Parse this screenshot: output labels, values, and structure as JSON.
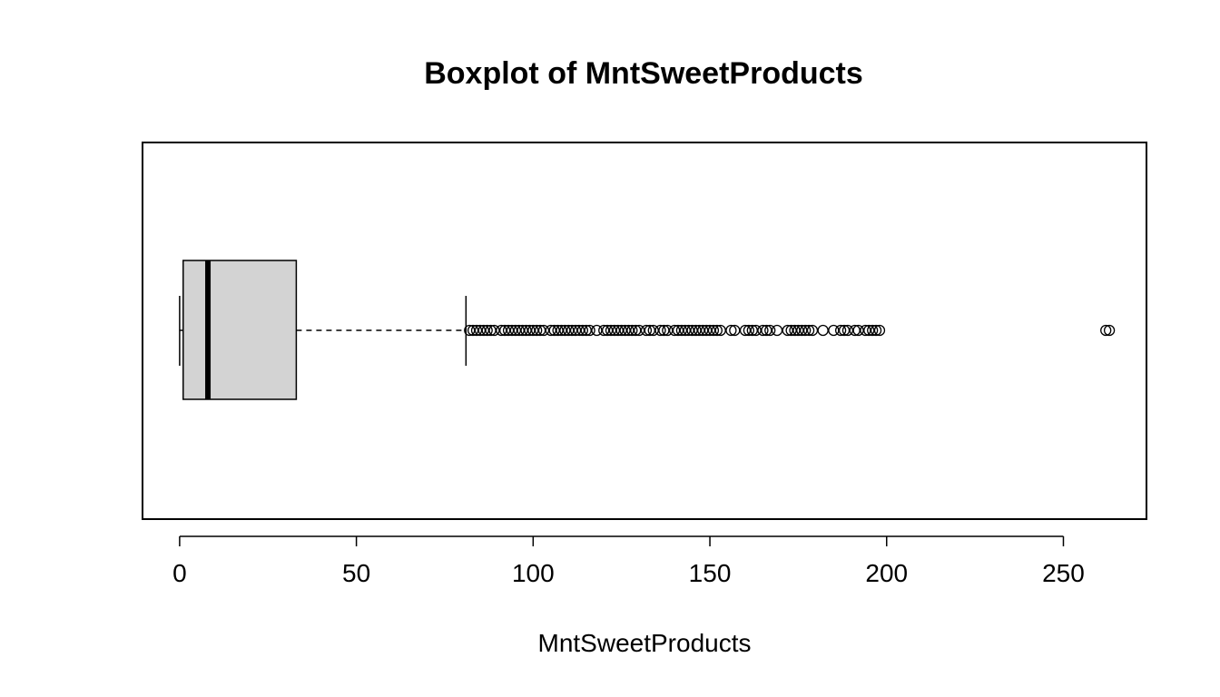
{
  "chart_data": {
    "type": "boxplot",
    "orientation": "horizontal",
    "title": "Boxplot of MntSweetProducts",
    "xlabel": "MntSweetProducts",
    "ylabel": "",
    "xlim": [
      -10.5,
      273.5
    ],
    "xticks": [
      0,
      50,
      100,
      150,
      200,
      250
    ],
    "xtick_labels": [
      "0",
      "50",
      "100",
      "150",
      "200",
      "250"
    ],
    "grid": false,
    "box": {
      "min": 0,
      "q1": 1,
      "median": 8,
      "q3": 33,
      "whisker_high": 81
    },
    "outliers": [
      82,
      83,
      84,
      85,
      86,
      87,
      88,
      89,
      91,
      92,
      93,
      94,
      95,
      96,
      97,
      98,
      99,
      100,
      101,
      102,
      103,
      105,
      106,
      107,
      108,
      109,
      110,
      111,
      112,
      113,
      114,
      115,
      116,
      118,
      120,
      121,
      122,
      123,
      124,
      125,
      126,
      127,
      128,
      129,
      130,
      132,
      133,
      134,
      136,
      137,
      138,
      140,
      141,
      142,
      143,
      144,
      145,
      146,
      147,
      148,
      149,
      150,
      151,
      152,
      153,
      156,
      157,
      160,
      161,
      162,
      163,
      165,
      166,
      167,
      169,
      172,
      173,
      174,
      175,
      176,
      177,
      178,
      179,
      182,
      185,
      187,
      188,
      189,
      191,
      192,
      194,
      195,
      196,
      197,
      198,
      262,
      263
    ],
    "colors": {
      "box_fill": "#d3d3d3",
      "stroke": "#000000"
    }
  }
}
